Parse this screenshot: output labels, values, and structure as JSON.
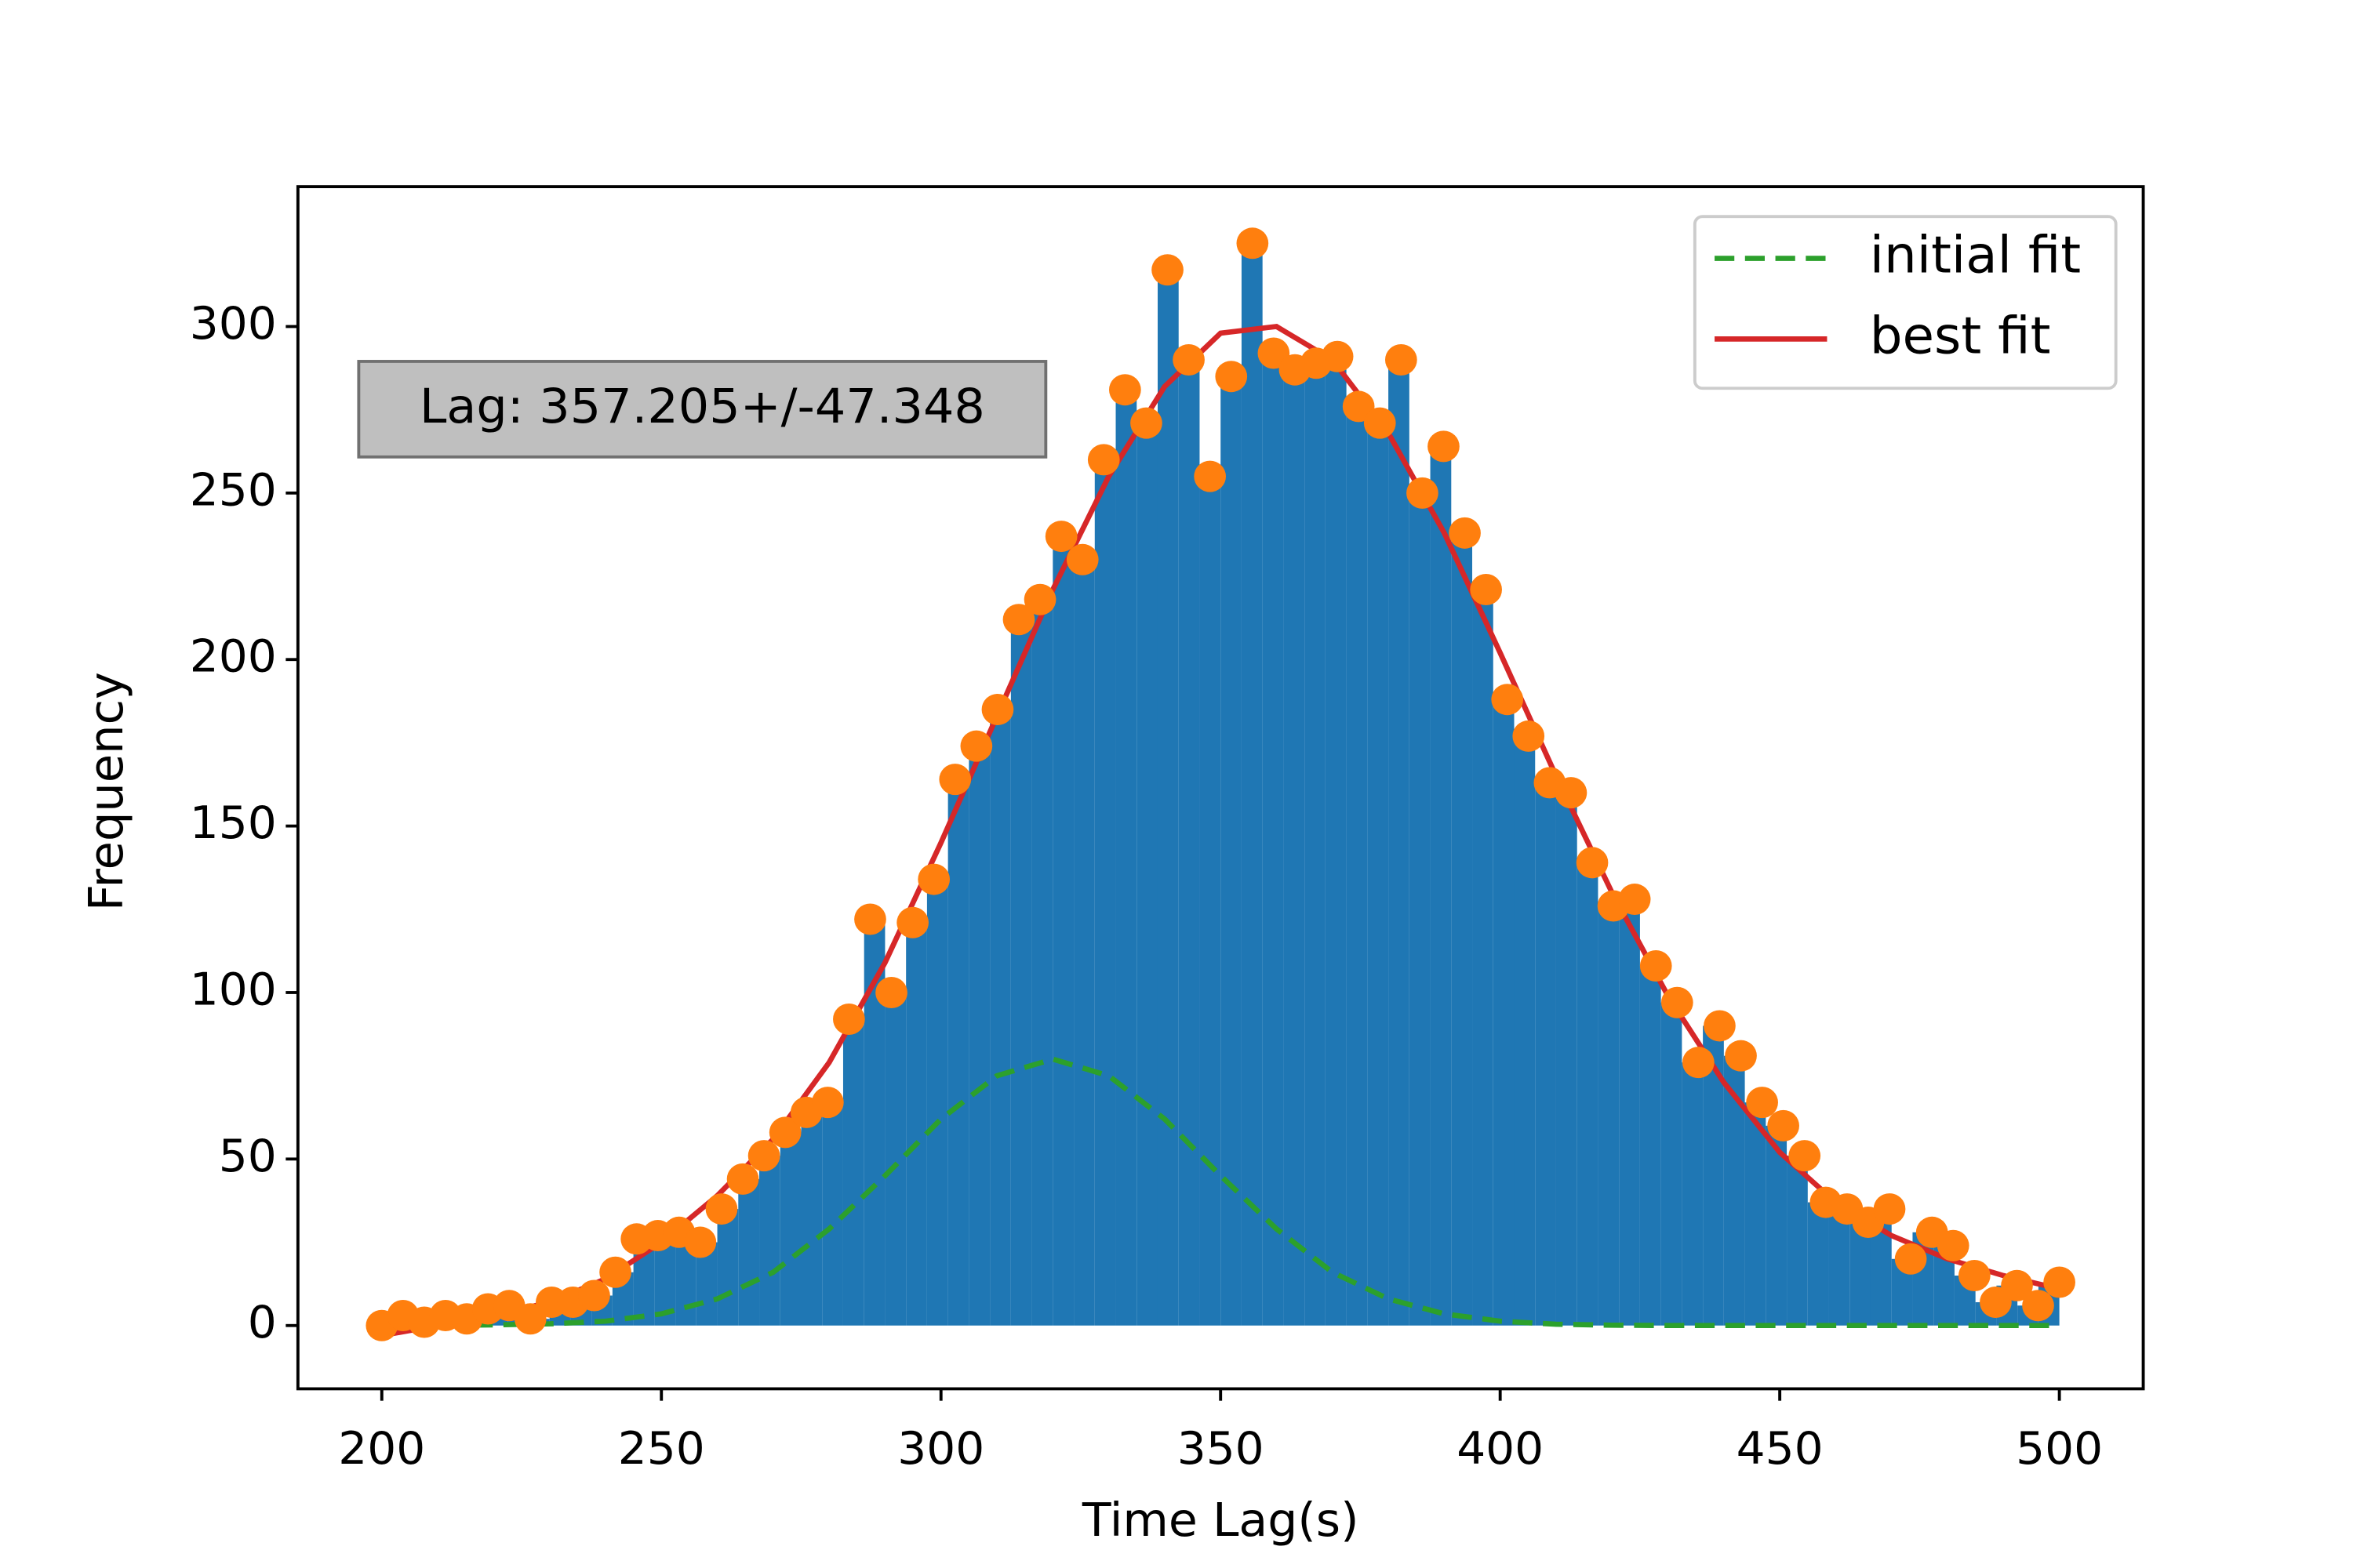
{
  "chart_data": {
    "type": "histogram",
    "xlabel": "Time Lag(s)",
    "ylabel": "Frequency",
    "annotation": "Lag: 357.205+/-47.348",
    "xlim": [
      185,
      515
    ],
    "ylim": [
      -19,
      342
    ],
    "xticks": [
      200,
      250,
      300,
      350,
      400,
      450,
      500
    ],
    "yticks": [
      0,
      50,
      100,
      150,
      200,
      250,
      300
    ],
    "grid": false,
    "legend": "upper right",
    "color": "#1f77b4",
    "bins": [
      200,
      203.75,
      207.5,
      211.25,
      215,
      218.75,
      222.5,
      226.25,
      230,
      233.75,
      237.5,
      241.25,
      245,
      248.75,
      252.5,
      256.25,
      260,
      263.75,
      267.5,
      271.25,
      275,
      278.75,
      282.5,
      286.25,
      290,
      293.75,
      297.5,
      301.25,
      305,
      308.75,
      312.5,
      316.25,
      320,
      323.75,
      327.5,
      331.25,
      335,
      338.75,
      342.5,
      346.25,
      350,
      353.75,
      357.5,
      361.25,
      365,
      368.75,
      372.5,
      376.25,
      380,
      383.75,
      387.5,
      391.25,
      395,
      398.75,
      402.5,
      406.25,
      410,
      413.75,
      417.5,
      421.25,
      425,
      428.75,
      432.5,
      436.25,
      440,
      443.75,
      447.5,
      451.25,
      455,
      458.75,
      462.5,
      466.25,
      470,
      473.75,
      477.5,
      481.25,
      485,
      488.75,
      492.5,
      496.25,
      500
    ],
    "values": [
      0,
      3,
      1,
      3,
      2,
      5,
      6,
      2,
      7,
      7,
      9,
      16,
      26,
      27,
      28,
      25,
      35,
      44,
      51,
      58,
      64,
      67,
      92,
      122,
      100,
      121,
      134,
      164,
      174,
      185,
      212,
      218,
      237,
      230,
      260,
      281,
      271,
      317,
      290,
      255,
      285,
      325,
      292,
      287,
      289,
      291,
      276,
      271,
      290,
      250,
      264,
      238,
      221,
      188,
      177,
      163,
      160,
      139,
      126,
      128,
      108,
      97,
      79,
      90,
      81,
      67,
      60,
      51,
      37,
      35,
      31,
      35,
      20,
      28,
      24,
      15,
      7,
      12,
      6,
      13
    ],
    "points": {
      "color": "#ff7f0e",
      "x": [
        200,
        203.8,
        207.59,
        211.39,
        215.19,
        218.99,
        222.78,
        226.58,
        230.38,
        234.18,
        237.97,
        241.77,
        245.57,
        249.37,
        253.16,
        256.96,
        260.76,
        264.56,
        268.35,
        272.15,
        275.95,
        279.75,
        283.54,
        287.34,
        291.14,
        294.94,
        298.73,
        302.53,
        306.33,
        310.13,
        313.92,
        317.72,
        321.52,
        325.32,
        329.11,
        332.91,
        336.71,
        340.51,
        344.3,
        348.1,
        351.9,
        355.7,
        359.49,
        363.29,
        367.09,
        370.89,
        374.68,
        378.48,
        382.28,
        386.08,
        389.87,
        393.67,
        397.47,
        401.27,
        405.06,
        408.86,
        412.66,
        416.46,
        420.25,
        424.05,
        427.85,
        431.65,
        435.44,
        439.24,
        443.04,
        446.84,
        450.63,
        454.43,
        458.23,
        462.03,
        465.82,
        469.62,
        473.42,
        477.22,
        481.01,
        484.81,
        488.61,
        492.41,
        496.2,
        500
      ]
    },
    "series": [
      {
        "name": "initial fit",
        "color": "#2ca02c",
        "dashed": true,
        "x": [
          200,
          210,
          220,
          230,
          240,
          250,
          260,
          270,
          280,
          290,
          300,
          310,
          320,
          330,
          340,
          350,
          360,
          370,
          380,
          390,
          400,
          410,
          420,
          430,
          440,
          450,
          460,
          470,
          480,
          490,
          500
        ],
        "values": [
          0,
          0,
          0.2,
          0.5,
          1.3,
          3.5,
          8,
          16,
          29,
          45,
          62,
          75,
          80,
          75,
          62,
          45,
          29,
          16,
          8,
          3.5,
          1.3,
          0.4,
          0.1,
          0,
          0,
          0,
          0,
          0,
          0,
          0,
          0
        ]
      },
      {
        "name": "best fit",
        "color": "#d62728",
        "dashed": false,
        "x": [
          200,
          210,
          220,
          230,
          240,
          250,
          260,
          270,
          280,
          290,
          300,
          310,
          320,
          330,
          340,
          350,
          360,
          370,
          380,
          390,
          400,
          410,
          420,
          430,
          440,
          450,
          460,
          470,
          480,
          490,
          500
        ],
        "values": [
          -3,
          0,
          3,
          7,
          14,
          25,
          39,
          56,
          79,
          109,
          145,
          183,
          221,
          255,
          282,
          298,
          300,
          290,
          268,
          238,
          202,
          165,
          130,
          99,
          73,
          52,
          37,
          27,
          20,
          15,
          11
        ]
      }
    ]
  }
}
